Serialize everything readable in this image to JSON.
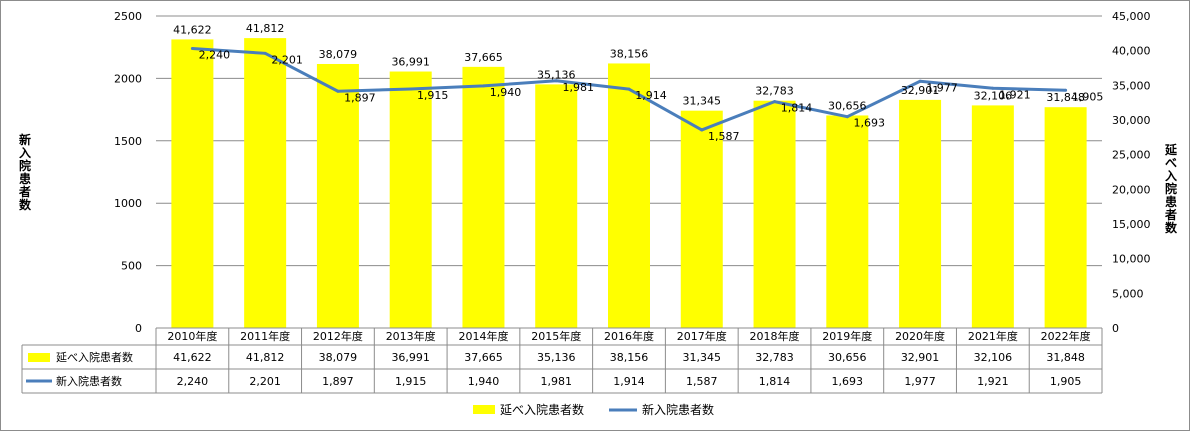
{
  "chart_data": {
    "type": "bar",
    "categories": [
      "2010年度",
      "2011年度",
      "2012年度",
      "2013年度",
      "2014年度",
      "2015年度",
      "2016年度",
      "2017年度",
      "2018年度",
      "2019年度",
      "2020年度",
      "2021年度",
      "2022年度"
    ],
    "series": [
      {
        "name": "延べ入院患者数",
        "type": "bar",
        "axis": "right",
        "color": "#ffff00",
        "values": [
          41622,
          41812,
          38079,
          36991,
          37665,
          35136,
          38156,
          31345,
          32783,
          30656,
          32901,
          32106,
          31848
        ],
        "labels": [
          "41,622",
          "41,812",
          "38,079",
          "36,991",
          "37,665",
          "35,136",
          "38,156",
          "31,345",
          "32,783",
          "30,656",
          "32,901",
          "32,106",
          "31,848"
        ]
      },
      {
        "name": "新入院患者数",
        "type": "line",
        "axis": "left",
        "color": "#4a7ebb",
        "values": [
          2240,
          2201,
          1897,
          1915,
          1940,
          1981,
          1914,
          1587,
          1814,
          1693,
          1977,
          1921,
          1905
        ],
        "labels": [
          "2,240",
          "2,201",
          "1,897",
          "1,915",
          "1,940",
          "1,981",
          "1,914",
          "1,587",
          "1,814",
          "1,693",
          "1,977",
          "1,921",
          "1,905"
        ]
      }
    ],
    "y_left": {
      "label": "新入院患者数",
      "ylim": [
        0,
        2500
      ],
      "ticks": [
        "0",
        "500",
        "1000",
        "1500",
        "2000",
        "2500"
      ]
    },
    "y_right": {
      "label": "延べ入院患者数",
      "ylim": [
        0,
        45000
      ],
      "ticks": [
        "0",
        "5,000",
        "10,000",
        "15,000",
        "20,000",
        "25,000",
        "30,000",
        "35,000",
        "40,000",
        "45,000"
      ]
    },
    "grid": true,
    "data_table": true,
    "legend_position": "bottom"
  }
}
